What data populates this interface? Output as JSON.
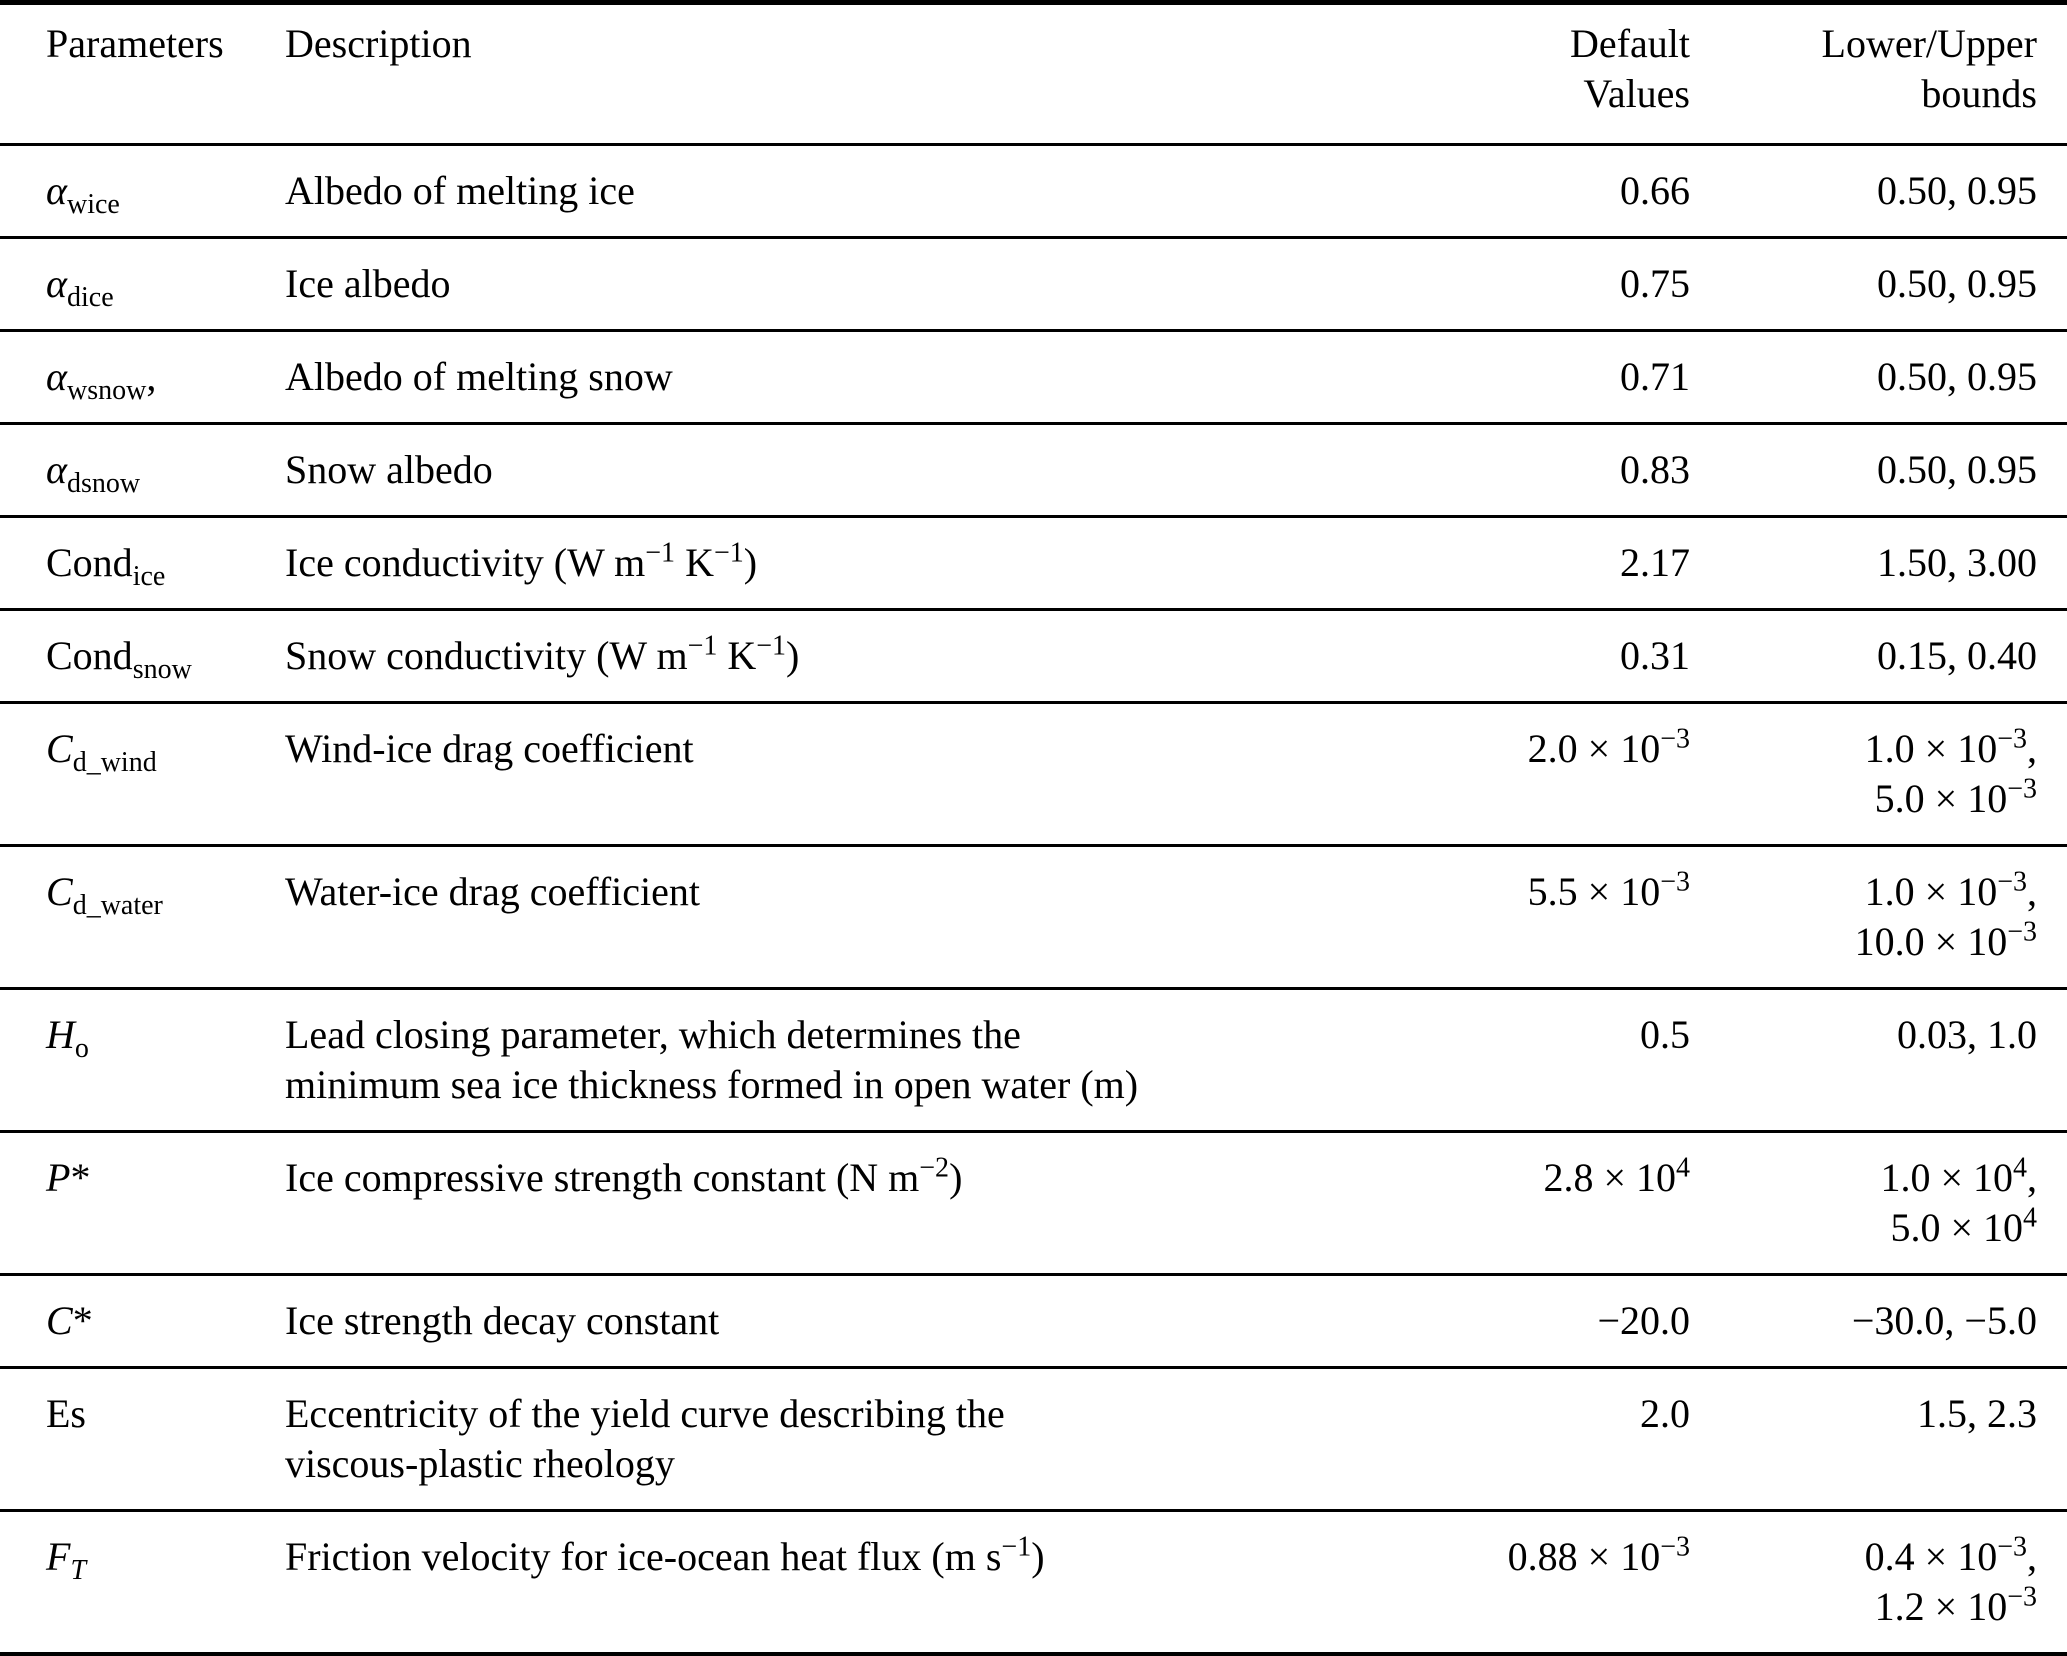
{
  "colors": {
    "background": "#ffffff",
    "text": "#000000",
    "rule": "#000000"
  },
  "table": {
    "header": [
      {
        "label": "Parameters",
        "lines": [
          "Parameters"
        ]
      },
      {
        "label": "Description",
        "lines": [
          "Description"
        ]
      },
      {
        "label": "Default Values",
        "lines": [
          "Default",
          "Values"
        ]
      },
      {
        "label": "Lower/Upper bounds",
        "lines": [
          "Lower/Upper",
          "bounds"
        ]
      }
    ],
    "rows": [
      {
        "param": [
          {
            "t": "α",
            "i": true
          },
          {
            "t": "wice",
            "sub": true
          }
        ],
        "description": [
          [
            {
              "t": "Albedo of melting ice"
            }
          ]
        ],
        "default_value": [
          {
            "t": "0.66"
          }
        ],
        "bounds": [
          [
            {
              "t": "0.50, 0.95"
            }
          ]
        ]
      },
      {
        "param": [
          {
            "t": "α",
            "i": true
          },
          {
            "t": "dice",
            "sub": true
          }
        ],
        "description": [
          [
            {
              "t": "Ice albedo"
            }
          ]
        ],
        "default_value": [
          {
            "t": "0.75"
          }
        ],
        "bounds": [
          [
            {
              "t": "0.50, 0.95"
            }
          ]
        ]
      },
      {
        "param": [
          {
            "t": "α",
            "i": true
          },
          {
            "t": "wsnow",
            "sub": true
          },
          {
            "t": ","
          }
        ],
        "description": [
          [
            {
              "t": "Albedo of melting snow"
            }
          ]
        ],
        "default_value": [
          {
            "t": "0.71"
          }
        ],
        "bounds": [
          [
            {
              "t": "0.50, 0.95"
            }
          ]
        ]
      },
      {
        "param": [
          {
            "t": "α",
            "i": true
          },
          {
            "t": "dsnow",
            "sub": true
          }
        ],
        "description": [
          [
            {
              "t": "Snow albedo"
            }
          ]
        ],
        "default_value": [
          {
            "t": "0.83"
          }
        ],
        "bounds": [
          [
            {
              "t": "0.50, 0.95"
            }
          ]
        ]
      },
      {
        "param": [
          {
            "t": "Cond"
          },
          {
            "t": "ice",
            "sub": true
          }
        ],
        "description": [
          [
            {
              "t": "Ice conductivity (W m"
            },
            {
              "t": "−1",
              "sup": true
            },
            {
              "t": " K"
            },
            {
              "t": "−1",
              "sup": true
            },
            {
              "t": ")"
            }
          ]
        ],
        "default_value": [
          {
            "t": "2.17"
          }
        ],
        "bounds": [
          [
            {
              "t": "1.50, 3.00"
            }
          ]
        ]
      },
      {
        "param": [
          {
            "t": "Cond"
          },
          {
            "t": "snow",
            "sub": true
          }
        ],
        "description": [
          [
            {
              "t": "Snow conductivity (W m"
            },
            {
              "t": "−1",
              "sup": true
            },
            {
              "t": " K"
            },
            {
              "t": "−1",
              "sup": true
            },
            {
              "t": ")"
            }
          ]
        ],
        "default_value": [
          {
            "t": "0.31"
          }
        ],
        "bounds": [
          [
            {
              "t": "0.15, 0.40"
            }
          ]
        ]
      },
      {
        "param": [
          {
            "t": "C",
            "i": true
          },
          {
            "t": "d_wind",
            "sub": true
          }
        ],
        "description": [
          [
            {
              "t": "Wind-ice drag coefficient"
            }
          ]
        ],
        "default_value": [
          {
            "t": "2.0 × 10"
          },
          {
            "t": "−3",
            "sup": true
          }
        ],
        "bounds": [
          [
            {
              "t": "1.0 × 10"
            },
            {
              "t": "−3",
              "sup": true
            },
            {
              "t": ","
            }
          ],
          [
            {
              "t": "5.0 × 10"
            },
            {
              "t": "−3",
              "sup": true
            }
          ]
        ]
      },
      {
        "param": [
          {
            "t": "C",
            "i": true
          },
          {
            "t": "d_water",
            "sub": true
          }
        ],
        "description": [
          [
            {
              "t": "Water-ice drag coefficient"
            }
          ]
        ],
        "default_value": [
          {
            "t": "5.5 × 10"
          },
          {
            "t": "−3",
            "sup": true
          }
        ],
        "bounds": [
          [
            {
              "t": "1.0 × 10"
            },
            {
              "t": "−3",
              "sup": true
            },
            {
              "t": ","
            }
          ],
          [
            {
              "t": "10.0 × 10"
            },
            {
              "t": "−3",
              "sup": true
            }
          ]
        ]
      },
      {
        "param": [
          {
            "t": "H",
            "i": true
          },
          {
            "t": "o",
            "sub": true
          }
        ],
        "description": [
          [
            {
              "t": "Lead closing parameter, which determines the"
            }
          ],
          [
            {
              "t": "minimum sea ice thickness formed in open water (m)"
            }
          ]
        ],
        "default_value": [
          {
            "t": "0.5"
          }
        ],
        "bounds": [
          [
            {
              "t": "0.03, 1.0"
            }
          ]
        ]
      },
      {
        "param": [
          {
            "t": "P",
            "i": true
          },
          {
            "t": "*"
          }
        ],
        "description": [
          [
            {
              "t": "Ice compressive strength constant (N m"
            },
            {
              "t": "−2",
              "sup": true
            },
            {
              "t": ")"
            }
          ]
        ],
        "default_value": [
          {
            "t": "2.8 × 10"
          },
          {
            "t": "4",
            "sup": true
          }
        ],
        "bounds": [
          [
            {
              "t": "1.0 × 10"
            },
            {
              "t": "4",
              "sup": true
            },
            {
              "t": ","
            }
          ],
          [
            {
              "t": "5.0 × 10"
            },
            {
              "t": "4",
              "sup": true
            }
          ]
        ]
      },
      {
        "param": [
          {
            "t": "C",
            "i": true
          },
          {
            "t": "*"
          }
        ],
        "description": [
          [
            {
              "t": "Ice strength decay constant"
            }
          ]
        ],
        "default_value": [
          {
            "t": "−20.0"
          }
        ],
        "bounds": [
          [
            {
              "t": "−30.0, −5.0"
            }
          ]
        ]
      },
      {
        "param": [
          {
            "t": "Es"
          }
        ],
        "description": [
          [
            {
              "t": "Eccentricity of the yield curve describing the"
            }
          ],
          [
            {
              "t": "viscous-plastic rheology"
            }
          ]
        ],
        "default_value": [
          {
            "t": "2.0"
          }
        ],
        "bounds": [
          [
            {
              "t": "1.5, 2.3"
            }
          ]
        ]
      },
      {
        "param": [
          {
            "t": "F",
            "i": true
          },
          {
            "t": "T",
            "sub": true,
            "i": true
          }
        ],
        "description": [
          [
            {
              "t": "Friction velocity for ice-ocean heat flux (m s"
            },
            {
              "t": "−1",
              "sup": true
            },
            {
              "t": ")"
            }
          ]
        ],
        "default_value": [
          {
            "t": "0.88 × 10"
          },
          {
            "t": "−3",
            "sup": true
          }
        ],
        "bounds": [
          [
            {
              "t": "0.4 × 10"
            },
            {
              "t": "−3",
              "sup": true
            },
            {
              "t": ","
            }
          ],
          [
            {
              "t": "1.2 × 10"
            },
            {
              "t": "−3",
              "sup": true
            }
          ]
        ]
      }
    ]
  }
}
